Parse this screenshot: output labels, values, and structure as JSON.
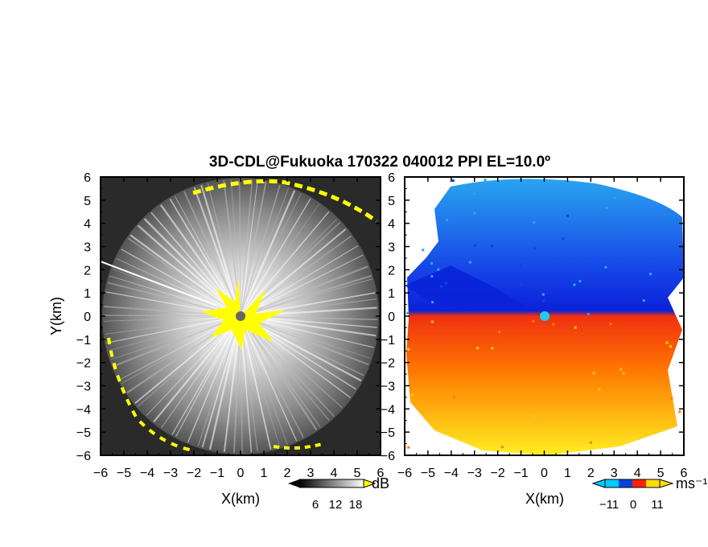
{
  "chart_data": {
    "type": "heatmap",
    "title": "3D-CDL@Fukuoka 170322 040012 PPI EL=10.0º",
    "panels": [
      {
        "name": "left",
        "xlabel": "X(km)",
        "ylabel": "Y(km)",
        "xlim": [
          -6,
          6
        ],
        "ylim": [
          -6,
          6
        ],
        "xticks": [
          "−6",
          "−5",
          "−4",
          "−3",
          "−2",
          "−1",
          "0",
          "1",
          "2",
          "3",
          "4",
          "5",
          "6"
        ],
        "yticks": [
          "−6",
          "−5",
          "−4",
          "−3",
          "−2",
          "−1",
          "0",
          "1",
          "2",
          "3",
          "4",
          "5",
          "6"
        ],
        "colorbar": {
          "ticks": [
            "6",
            "12",
            "18"
          ],
          "unit": "dB",
          "colors": [
            "#000000",
            "#ffffff"
          ]
        },
        "highlight_color": "#ffff00"
      },
      {
        "name": "right",
        "xlabel": "X(km)",
        "xlim": [
          -6,
          6
        ],
        "ylim": [
          -6,
          6
        ],
        "xticks": [
          "−6",
          "−5",
          "−4",
          "−3",
          "−2",
          "−1",
          "0",
          "1",
          "2",
          "3",
          "4",
          "5",
          "6"
        ],
        "yticks": [
          "−6",
          "−5",
          "−4",
          "−3",
          "−2",
          "−1",
          "0",
          "1",
          "2",
          "3",
          "4",
          "5",
          "6"
        ],
        "colorbar": {
          "ticks": [
            "−11",
            "0",
            "11"
          ],
          "unit": "ms⁻¹",
          "colors": [
            "#00ccff",
            "#0044dd",
            "#ff2200",
            "#ffdd00"
          ]
        }
      }
    ]
  }
}
